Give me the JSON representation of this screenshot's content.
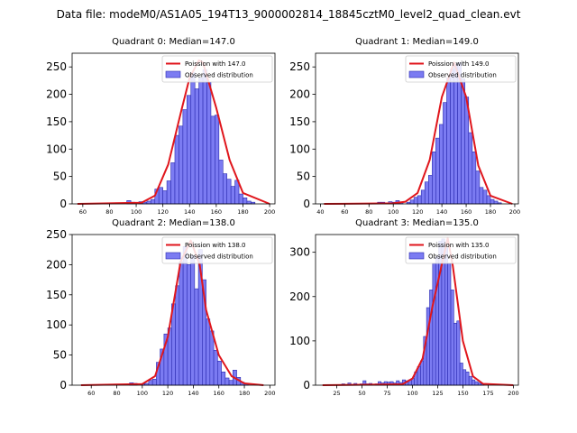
{
  "figure_title": "Data file: modeM0/AS1A05_194T13_9000002814_18845cztM0_level2_quad_clean.evt",
  "legend_labels": {
    "observed": "Observed distribution"
  },
  "colors": {
    "hist_fill": "#7b7bf2",
    "hist_edge": "#2b2bb0",
    "curve": "#e0161c",
    "axes": "#000000"
  },
  "chart_data": [
    {
      "type": "bar",
      "title": "Quadrant 0: Median=147.0",
      "poisson_label": "Poission with 147.0",
      "median": 147.0,
      "bin_width": 3,
      "xlim": [
        52,
        204
      ],
      "ylim": [
        0,
        275
      ],
      "xticks": [
        "60",
        "80",
        "100",
        "120",
        "140",
        "160",
        "180",
        "200"
      ],
      "yticks": [
        "0",
        "50",
        "100",
        "150",
        "200",
        "250"
      ],
      "bins": [
        [
          93,
          6
        ],
        [
          96,
          3
        ],
        [
          102,
          4
        ],
        [
          105,
          3
        ],
        [
          108,
          5
        ],
        [
          111,
          8
        ],
        [
          114,
          27
        ],
        [
          117,
          30
        ],
        [
          120,
          24
        ],
        [
          123,
          42
        ],
        [
          126,
          75
        ],
        [
          129,
          125
        ],
        [
          132,
          142
        ],
        [
          135,
          172
        ],
        [
          138,
          198
        ],
        [
          141,
          240
        ],
        [
          144,
          210
        ],
        [
          147,
          230
        ],
        [
          150,
          245
        ],
        [
          153,
          222
        ],
        [
          156,
          160
        ],
        [
          159,
          162
        ],
        [
          162,
          80
        ],
        [
          165,
          55
        ],
        [
          168,
          45
        ],
        [
          171,
          32
        ],
        [
          174,
          43
        ],
        [
          177,
          18
        ],
        [
          180,
          11
        ],
        [
          183,
          5
        ],
        [
          186,
          3
        ]
      ],
      "curve_x": [
        56,
        104,
        114,
        124,
        134,
        140,
        147,
        150,
        160,
        170,
        180,
        200
      ],
      "curve_y": [
        0,
        2,
        15,
        72,
        172,
        230,
        262,
        258,
        175,
        80,
        20,
        0
      ]
    },
    {
      "type": "bar",
      "title": "Quadrant 1: Median=149.0",
      "poisson_label": "Poission with 149.0",
      "median": 149.0,
      "bin_width": 3,
      "xlim": [
        36,
        203
      ],
      "ylim": [
        0,
        275
      ],
      "xticks": [
        "40",
        "60",
        "80",
        "100",
        "120",
        "140",
        "160",
        "180",
        "200"
      ],
      "yticks": [
        "0",
        "50",
        "100",
        "150",
        "200",
        "250"
      ],
      "bins": [
        [
          87,
          3
        ],
        [
          90,
          3
        ],
        [
          96,
          4
        ],
        [
          99,
          3
        ],
        [
          102,
          6
        ],
        [
          105,
          3
        ],
        [
          111,
          3
        ],
        [
          114,
          7
        ],
        [
          117,
          12
        ],
        [
          120,
          15
        ],
        [
          123,
          25
        ],
        [
          126,
          40
        ],
        [
          129,
          52
        ],
        [
          132,
          95
        ],
        [
          135,
          120
        ],
        [
          138,
          145
        ],
        [
          141,
          185
        ],
        [
          144,
          230
        ],
        [
          147,
          246
        ],
        [
          150,
          255
        ],
        [
          153,
          258
        ],
        [
          156,
          228
        ],
        [
          159,
          195
        ],
        [
          162,
          130
        ],
        [
          165,
          95
        ],
        [
          168,
          60
        ],
        [
          171,
          30
        ],
        [
          174,
          25
        ],
        [
          177,
          15
        ],
        [
          180,
          8
        ],
        [
          183,
          5
        ],
        [
          186,
          2
        ]
      ],
      "curve_x": [
        43,
        100,
        110,
        120,
        130,
        140,
        150,
        160,
        170,
        180,
        198
      ],
      "curve_y": [
        0,
        1,
        4,
        20,
        80,
        195,
        258,
        195,
        70,
        15,
        0
      ]
    },
    {
      "type": "bar",
      "title": "Quadrant 2: Median=138.0",
      "poisson_label": "Poission with 138.0",
      "median": 138.0,
      "bin_width": 3,
      "xlim": [
        45,
        204
      ],
      "ylim": [
        0,
        250
      ],
      "xticks": [
        "60",
        "80",
        "100",
        "120",
        "140",
        "160",
        "180",
        "200"
      ],
      "yticks": [
        "0",
        "50",
        "100",
        "150",
        "200",
        "250"
      ],
      "bins": [
        [
          90,
          4
        ],
        [
          93,
          3
        ],
        [
          99,
          2
        ],
        [
          102,
          3
        ],
        [
          105,
          8
        ],
        [
          108,
          10
        ],
        [
          111,
          38
        ],
        [
          114,
          60
        ],
        [
          117,
          85
        ],
        [
          120,
          95
        ],
        [
          123,
          135
        ],
        [
          126,
          165
        ],
        [
          129,
          205
        ],
        [
          132,
          230
        ],
        [
          135,
          200
        ],
        [
          138,
          215
        ],
        [
          141,
          160
        ],
        [
          144,
          225
        ],
        [
          147,
          175
        ],
        [
          150,
          110
        ],
        [
          153,
          90
        ],
        [
          156,
          58
        ],
        [
          159,
          40
        ],
        [
          162,
          22
        ],
        [
          165,
          12
        ],
        [
          168,
          8
        ],
        [
          171,
          25
        ],
        [
          174,
          13
        ],
        [
          177,
          5
        ],
        [
          180,
          3
        ]
      ],
      "curve_x": [
        52,
        100,
        110,
        120,
        130,
        138,
        145,
        150,
        160,
        170,
        180,
        195
      ],
      "curve_y": [
        0,
        2,
        15,
        80,
        205,
        240,
        200,
        125,
        50,
        15,
        3,
        0
      ]
    },
    {
      "type": "bar",
      "title": "Quadrant 3: Median=135.0",
      "poisson_label": "Poission with 135.0",
      "median": 135.0,
      "bin_width": 3,
      "xlim": [
        4,
        205
      ],
      "ylim": [
        0,
        340
      ],
      "xticks": [
        "25",
        "50",
        "75",
        "100",
        "125",
        "150",
        "175",
        "200"
      ],
      "yticks": [
        "0",
        "100",
        "200",
        "300"
      ],
      "bins": [
        [
          30,
          3
        ],
        [
          36,
          5
        ],
        [
          42,
          4
        ],
        [
          48,
          3
        ],
        [
          51,
          10
        ],
        [
          54,
          3
        ],
        [
          57,
          4
        ],
        [
          63,
          3
        ],
        [
          66,
          8
        ],
        [
          69,
          5
        ],
        [
          72,
          8
        ],
        [
          75,
          7
        ],
        [
          78,
          8
        ],
        [
          81,
          5
        ],
        [
          84,
          10
        ],
        [
          87,
          6
        ],
        [
          90,
          12
        ],
        [
          93,
          10
        ],
        [
          96,
          12
        ],
        [
          99,
          15
        ],
        [
          102,
          30
        ],
        [
          105,
          42
        ],
        [
          108,
          55
        ],
        [
          111,
          110
        ],
        [
          114,
          175
        ],
        [
          117,
          215
        ],
        [
          120,
          275
        ],
        [
          123,
          290
        ],
        [
          126,
          325
        ],
        [
          129,
          330
        ],
        [
          132,
          310
        ],
        [
          135,
          275
        ],
        [
          138,
          215
        ],
        [
          141,
          140
        ],
        [
          144,
          145
        ],
        [
          147,
          50
        ],
        [
          150,
          35
        ],
        [
          153,
          30
        ],
        [
          156,
          20
        ],
        [
          159,
          12
        ],
        [
          162,
          8
        ],
        [
          165,
          5
        ],
        [
          168,
          3
        ]
      ],
      "curve_x": [
        11,
        90,
        100,
        110,
        120,
        135,
        140,
        150,
        160,
        170,
        200
      ],
      "curve_y": [
        0,
        2,
        15,
        60,
        180,
        332,
        270,
        100,
        20,
        3,
        0
      ]
    }
  ]
}
